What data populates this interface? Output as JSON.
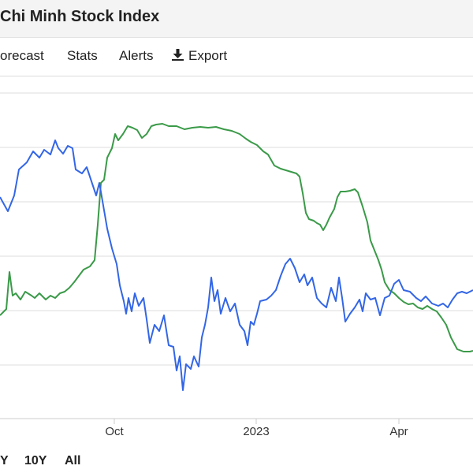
{
  "header": {
    "title": "Chi Minh Stock Index"
  },
  "tabs": [
    {
      "label": "orecast"
    },
    {
      "label": "Stats"
    },
    {
      "label": "Alerts"
    },
    {
      "label": "Export"
    }
  ],
  "range_buttons": [
    "Y",
    "10Y",
    "All"
  ],
  "colors": {
    "series_1": "#3366e6",
    "series_2": "#3a9a48",
    "grid": "#dedede",
    "header_bg": "#f4f4f4"
  },
  "icons": {
    "export": "download-icon"
  },
  "chart_data": {
    "type": "line",
    "x_tick_labels": [
      "Oct",
      "2023",
      "Apr"
    ],
    "grid": true,
    "legend": "none",
    "series": [
      {
        "color": "#3366e6",
        "points": [
          [
            0,
            250
          ],
          [
            10,
            268
          ],
          [
            18,
            248
          ],
          [
            24,
            215
          ],
          [
            34,
            206
          ],
          [
            42,
            192
          ],
          [
            50,
            200
          ],
          [
            56,
            190
          ],
          [
            64,
            196
          ],
          [
            70,
            178
          ],
          [
            74,
            188
          ],
          [
            80,
            195
          ],
          [
            86,
            185
          ],
          [
            92,
            188
          ],
          [
            96,
            215
          ],
          [
            104,
            220
          ],
          [
            110,
            212
          ],
          [
            116,
            230
          ],
          [
            122,
            248
          ],
          [
            126,
            232
          ],
          [
            130,
            255
          ],
          [
            136,
            290
          ],
          [
            142,
            315
          ],
          [
            148,
            335
          ],
          [
            152,
            362
          ],
          [
            157,
            382
          ],
          [
            160,
            398
          ],
          [
            163,
            378
          ],
          [
            167,
            395
          ],
          [
            171,
            372
          ],
          [
            176,
            388
          ],
          [
            182,
            378
          ],
          [
            186,
            405
          ],
          [
            190,
            435
          ],
          [
            196,
            412
          ],
          [
            202,
            420
          ],
          [
            208,
            400
          ],
          [
            214,
            438
          ],
          [
            220,
            440
          ],
          [
            224,
            470
          ],
          [
            228,
            452
          ],
          [
            232,
            495
          ],
          [
            236,
            462
          ],
          [
            242,
            468
          ],
          [
            246,
            452
          ],
          [
            252,
            465
          ],
          [
            256,
            428
          ],
          [
            260,
            412
          ],
          [
            264,
            390
          ],
          [
            268,
            352
          ],
          [
            272,
            382
          ],
          [
            276,
            368
          ],
          [
            280,
            398
          ],
          [
            286,
            378
          ],
          [
            292,
            395
          ],
          [
            298,
            385
          ],
          [
            304,
            412
          ],
          [
            310,
            420
          ],
          [
            314,
            438
          ],
          [
            318,
            408
          ],
          [
            322,
            412
          ],
          [
            326,
            398
          ],
          [
            330,
            382
          ],
          [
            338,
            380
          ],
          [
            344,
            375
          ],
          [
            350,
            368
          ],
          [
            356,
            350
          ],
          [
            362,
            335
          ],
          [
            368,
            328
          ],
          [
            374,
            340
          ],
          [
            380,
            358
          ],
          [
            386,
            348
          ],
          [
            390,
            362
          ],
          [
            396,
            352
          ],
          [
            402,
            378
          ],
          [
            408,
            385
          ],
          [
            414,
            390
          ],
          [
            420,
            365
          ],
          [
            426,
            382
          ],
          [
            430,
            352
          ],
          [
            434,
            378
          ],
          [
            438,
            408
          ],
          [
            444,
            398
          ],
          [
            450,
            390
          ],
          [
            456,
            380
          ],
          [
            460,
            395
          ],
          [
            464,
            372
          ],
          [
            470,
            380
          ],
          [
            476,
            378
          ],
          [
            482,
            400
          ],
          [
            488,
            378
          ],
          [
            494,
            375
          ],
          [
            500,
            360
          ],
          [
            506,
            355
          ],
          [
            512,
            368
          ],
          [
            520,
            370
          ],
          [
            528,
            378
          ],
          [
            534,
            382
          ],
          [
            540,
            376
          ],
          [
            548,
            385
          ],
          [
            556,
            388
          ],
          [
            562,
            385
          ],
          [
            568,
            390
          ],
          [
            574,
            380
          ],
          [
            580,
            372
          ],
          [
            586,
            370
          ],
          [
            592,
            372
          ],
          [
            600,
            368
          ]
        ]
      },
      {
        "color": "#3a9a48",
        "points": [
          [
            0,
            400
          ],
          [
            8,
            392
          ],
          [
            12,
            345
          ],
          [
            16,
            375
          ],
          [
            20,
            372
          ],
          [
            26,
            380
          ],
          [
            32,
            370
          ],
          [
            40,
            375
          ],
          [
            44,
            378
          ],
          [
            50,
            372
          ],
          [
            58,
            380
          ],
          [
            64,
            375
          ],
          [
            70,
            378
          ],
          [
            76,
            372
          ],
          [
            82,
            370
          ],
          [
            88,
            365
          ],
          [
            94,
            358
          ],
          [
            100,
            350
          ],
          [
            106,
            342
          ],
          [
            114,
            338
          ],
          [
            120,
            330
          ],
          [
            124,
            285
          ],
          [
            128,
            232
          ],
          [
            132,
            228
          ],
          [
            136,
            200
          ],
          [
            142,
            188
          ],
          [
            146,
            170
          ],
          [
            150,
            178
          ],
          [
            156,
            170
          ],
          [
            162,
            160
          ],
          [
            168,
            162
          ],
          [
            174,
            165
          ],
          [
            180,
            175
          ],
          [
            186,
            170
          ],
          [
            192,
            160
          ],
          [
            198,
            158
          ],
          [
            206,
            157
          ],
          [
            214,
            160
          ],
          [
            224,
            160
          ],
          [
            234,
            164
          ],
          [
            244,
            162
          ],
          [
            254,
            161
          ],
          [
            264,
            162
          ],
          [
            274,
            161
          ],
          [
            284,
            164
          ],
          [
            294,
            166
          ],
          [
            304,
            170
          ],
          [
            312,
            176
          ],
          [
            318,
            180
          ],
          [
            326,
            184
          ],
          [
            334,
            192
          ],
          [
            340,
            196
          ],
          [
            348,
            210
          ],
          [
            356,
            214
          ],
          [
            366,
            217
          ],
          [
            376,
            220
          ],
          [
            380,
            224
          ],
          [
            384,
            245
          ],
          [
            388,
            270
          ],
          [
            392,
            278
          ],
          [
            398,
            280
          ],
          [
            402,
            283
          ],
          [
            406,
            285
          ],
          [
            410,
            292
          ],
          [
            414,
            285
          ],
          [
            418,
            276
          ],
          [
            424,
            265
          ],
          [
            428,
            250
          ],
          [
            432,
            243
          ],
          [
            438,
            243
          ],
          [
            444,
            242
          ],
          [
            450,
            240
          ],
          [
            454,
            244
          ],
          [
            460,
            262
          ],
          [
            466,
            282
          ],
          [
            470,
            305
          ],
          [
            476,
            320
          ],
          [
            480,
            330
          ],
          [
            484,
            342
          ],
          [
            488,
            358
          ],
          [
            494,
            368
          ],
          [
            500,
            372
          ],
          [
            506,
            378
          ],
          [
            512,
            383
          ],
          [
            518,
            386
          ],
          [
            524,
            385
          ],
          [
            530,
            390
          ],
          [
            536,
            392
          ],
          [
            542,
            388
          ],
          [
            548,
            392
          ],
          [
            554,
            395
          ],
          [
            560,
            403
          ],
          [
            566,
            412
          ],
          [
            572,
            428
          ],
          [
            580,
            443
          ],
          [
            588,
            446
          ],
          [
            596,
            446
          ],
          [
            600,
            445
          ]
        ]
      }
    ]
  }
}
